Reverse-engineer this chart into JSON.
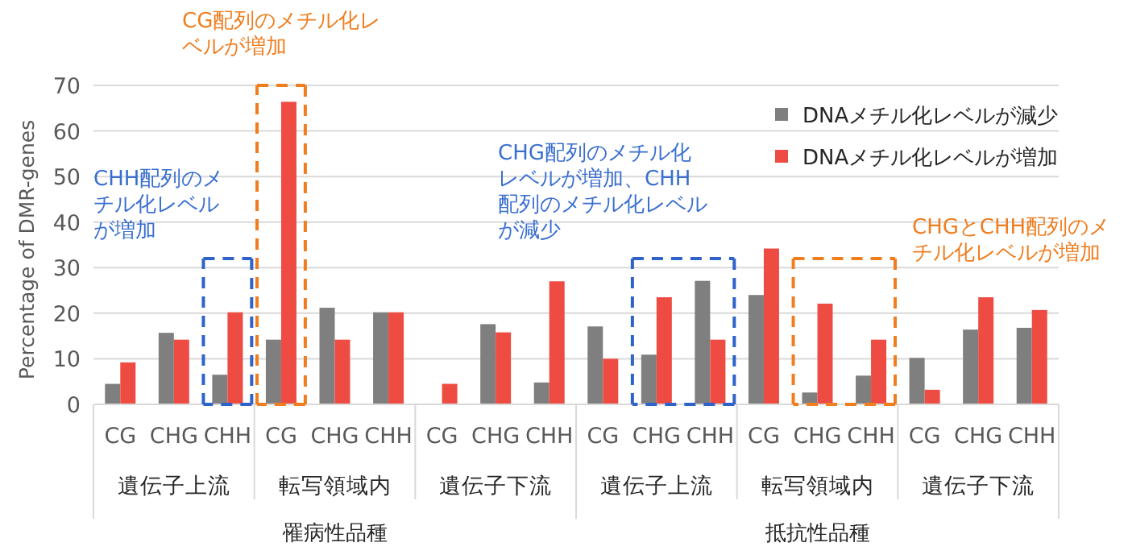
{
  "chart_data": {
    "type": "bar",
    "ylabel": "Percentage of DMR-genes",
    "categories": [
      "CG",
      "CHG",
      "CHH",
      "CG",
      "CHG",
      "CHH",
      "CG",
      "CHG",
      "CHH",
      "CG",
      "CHG",
      "CHH",
      "CG",
      "CHG",
      "CHH",
      "CG",
      "CHG",
      "CHH"
    ],
    "series": [
      {
        "name": "DNAメチル化レベルが減少",
        "color": "#7f7f7f",
        "values": [
          4.5,
          15.7,
          6.5,
          14.2,
          21.2,
          20.2,
          0,
          17.6,
          4.8,
          17.1,
          10.9,
          27.1,
          24.0,
          2.6,
          6.3,
          10.2,
          16.4,
          16.8
        ]
      },
      {
        "name": "DNAメチル化レベルが増加",
        "color": "#ee4c43",
        "values": [
          9.2,
          14.2,
          20.2,
          66.4,
          14.2,
          20.2,
          4.5,
          15.8,
          27.0,
          10.0,
          23.5,
          14.2,
          34.2,
          22.1,
          14.2,
          3.2,
          23.5,
          20.7
        ]
      }
    ],
    "ylim": [
      0,
      70
    ],
    "yticks": [
      0,
      10,
      20,
      30,
      40,
      50,
      60,
      70
    ],
    "grid": "y",
    "legend": "top right",
    "annotations": [
      "CG配列のメチル化レベルが増加",
      "CHH配列のメチル化レベルが増加",
      "CHG配列のメチル化レベルが増加、CHH配列のメチル化レベルが減少",
      "CHGとCHH配列のメチル化レベルが増加",
      "遺伝子上流",
      "転写領域内",
      "遺伝子下流",
      "遺伝子上流",
      "転写領域内",
      "遺伝子下流",
      "罹病性品種",
      "抵抗性品種"
    ]
  }
}
